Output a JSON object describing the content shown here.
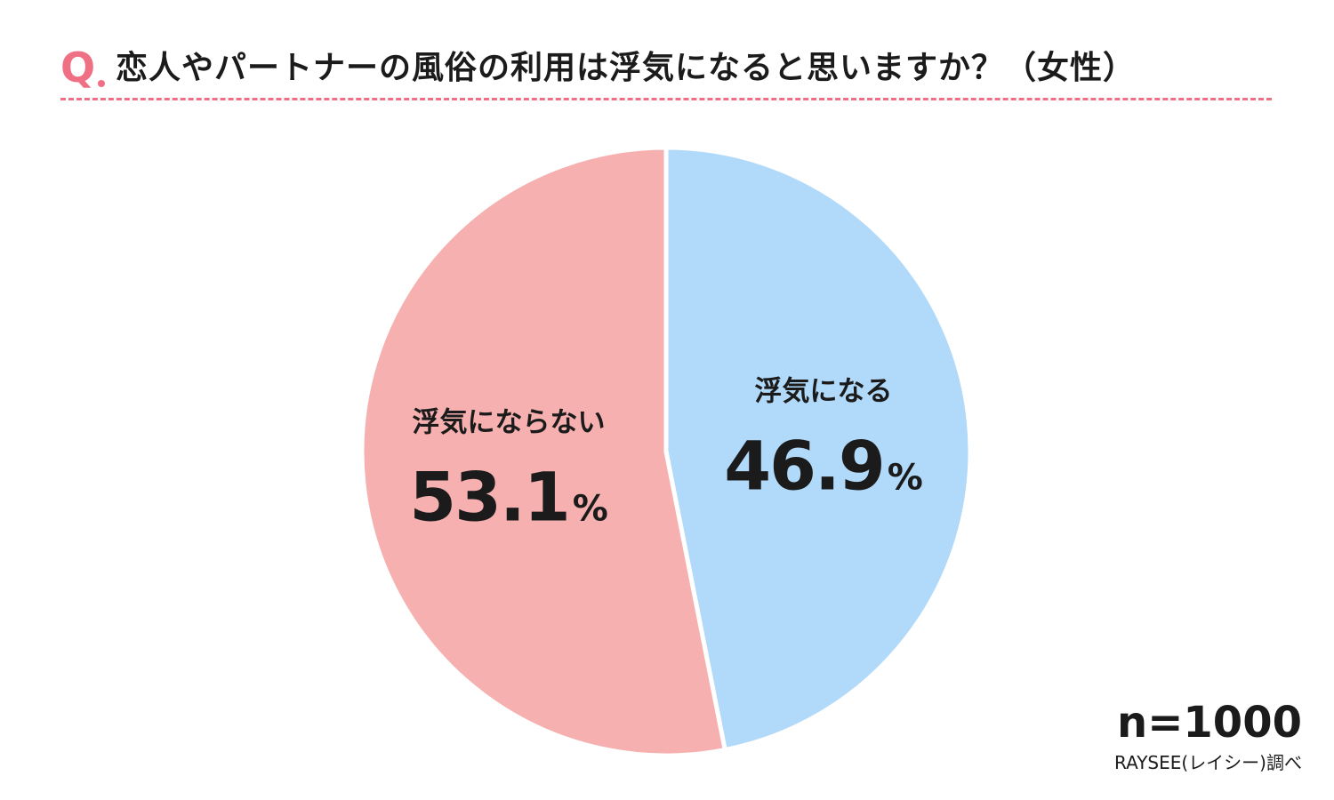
{
  "header": {
    "q_label": "Q",
    "question": "恋人やパートナーの風俗の利用は浮気になると思いますか？（女性）"
  },
  "colors": {
    "accent": "#ef6f85",
    "slice_no": "#f7b0b0",
    "slice_yes": "#b1d9f9",
    "text": "#1b1b1b"
  },
  "chart_data": {
    "type": "pie",
    "title": "恋人やパートナーの風俗の利用は浮気になると思いますか？（女性）",
    "start": "12 o'clock",
    "direction": "clockwise",
    "slices": [
      {
        "label": "浮気になる",
        "value": 46.9,
        "value_text": "46.9",
        "unit": "%",
        "color": "#b1d9f9"
      },
      {
        "label": "浮気にならない",
        "value": 53.1,
        "value_text": "53.1",
        "unit": "%",
        "color": "#f7b0b0"
      }
    ]
  },
  "footer": {
    "n_label": "n=1000",
    "source": "RAYSEE(レイシー)調べ"
  }
}
